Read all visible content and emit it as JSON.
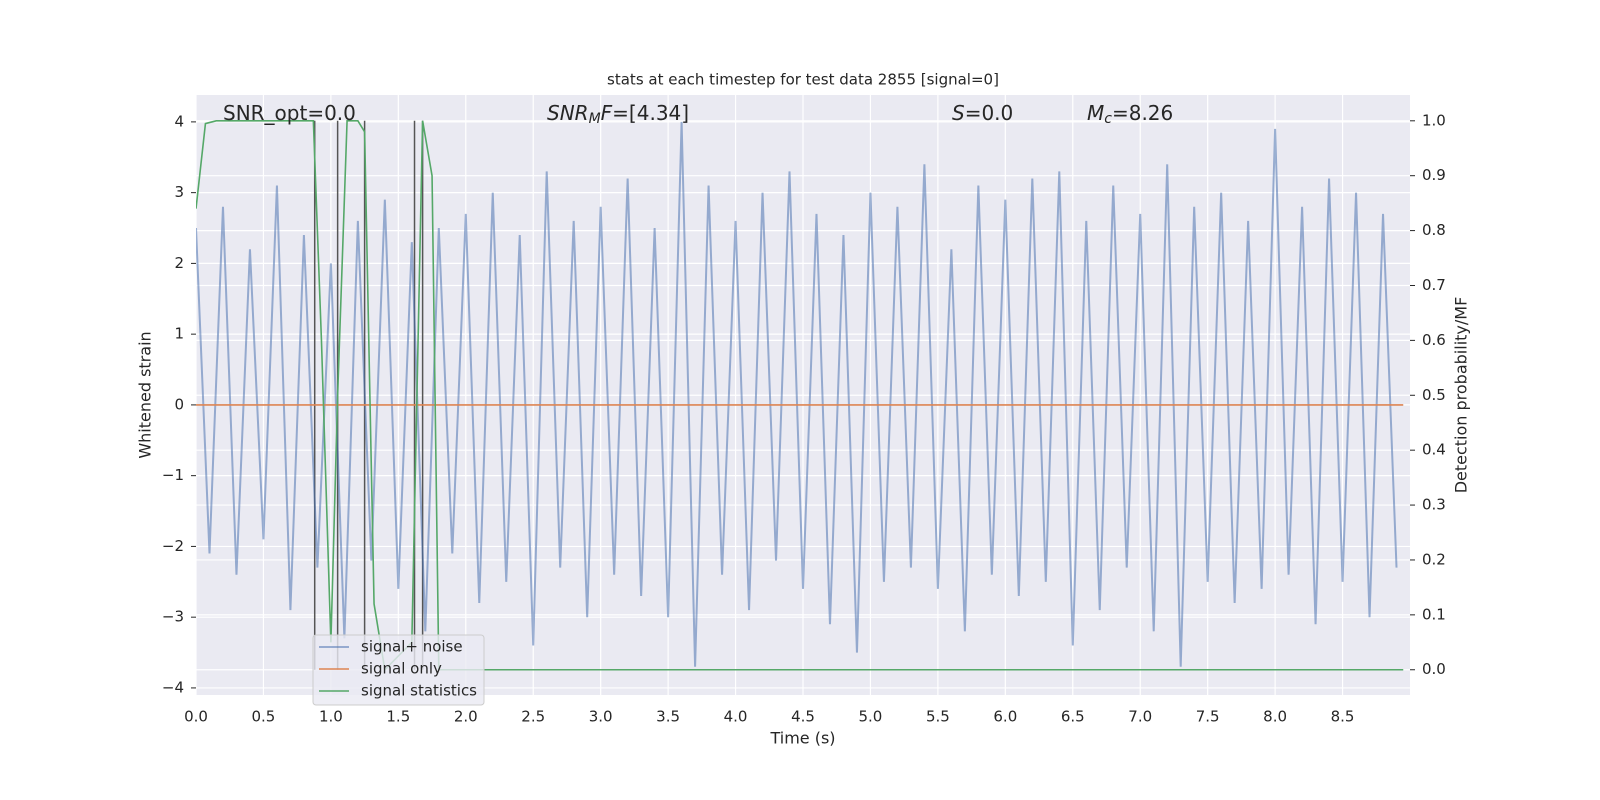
{
  "chart_data": {
    "type": "line",
    "title": "stats at each timestep for test data 2855 [signal=0]",
    "xlabel": "Time (s)",
    "ylabel": "Whitened strain",
    "y2label": "Detection probability/MF",
    "xlim": [
      0,
      9.0
    ],
    "ylim": [
      -4.1,
      4.38
    ],
    "y2lim": [
      -0.046,
      1.047
    ],
    "xticks": [
      {
        "value": 0,
        "label": "0.0"
      },
      {
        "value": 0.5,
        "label": "0.5"
      },
      {
        "value": 1,
        "label": "1.0"
      },
      {
        "value": 1.5,
        "label": "1.5"
      },
      {
        "value": 2,
        "label": "2.0"
      },
      {
        "value": 2.5,
        "label": "2.5"
      },
      {
        "value": 3,
        "label": "3.0"
      },
      {
        "value": 3.5,
        "label": "3.5"
      },
      {
        "value": 4,
        "label": "4.0"
      },
      {
        "value": 4.5,
        "label": "4.5"
      },
      {
        "value": 5,
        "label": "5.0"
      },
      {
        "value": 5.5,
        "label": "5.5"
      },
      {
        "value": 6,
        "label": "6.0"
      },
      {
        "value": 6.5,
        "label": "6.5"
      },
      {
        "value": 7,
        "label": "7.0"
      },
      {
        "value": 7.5,
        "label": "7.5"
      },
      {
        "value": 8,
        "label": "8.0"
      },
      {
        "value": 8.5,
        "label": "8.5"
      }
    ],
    "yticks": [
      {
        "value": -4,
        "label": "−4"
      },
      {
        "value": -3,
        "label": "−3"
      },
      {
        "value": -2,
        "label": "−2"
      },
      {
        "value": -1,
        "label": "−1"
      },
      0,
      1,
      2,
      3,
      4
    ],
    "y2ticks": [
      {
        "value": 0,
        "label": "0.0"
      },
      {
        "value": 0.1,
        "label": "0.1"
      },
      {
        "value": 0.2,
        "label": "0.2"
      },
      {
        "value": 0.3,
        "label": "0.3"
      },
      {
        "value": 0.4,
        "label": "0.4"
      },
      {
        "value": 0.5,
        "label": "0.5"
      },
      {
        "value": 0.6,
        "label": "0.6"
      },
      {
        "value": 0.7,
        "label": "0.7"
      },
      {
        "value": 0.8,
        "label": "0.8"
      },
      {
        "value": 0.9,
        "label": "0.9"
      },
      {
        "value": 1,
        "label": "1.0"
      }
    ],
    "grid": true,
    "legend": "lower left",
    "series": [
      {
        "name": "signal+ noise",
        "color": "#4c72b0",
        "x": [
          0,
          0.1,
          0.2,
          0.3,
          0.4,
          0.5,
          0.6,
          0.7,
          0.8,
          0.9,
          1,
          1.1,
          1.2,
          1.3,
          1.4,
          1.5,
          1.6,
          1.7,
          1.8,
          1.9,
          2,
          2.1,
          2.2,
          2.3,
          2.4,
          2.5,
          2.6,
          2.7,
          2.8,
          2.9,
          3,
          3.1,
          3.2,
          3.3,
          3.4,
          3.5,
          3.6,
          3.7,
          3.8,
          3.9,
          4,
          4.1,
          4.2,
          4.3,
          4.4,
          4.5,
          4.6,
          4.7,
          4.8,
          4.9,
          5,
          5.1,
          5.2,
          5.3,
          5.4,
          5.5,
          5.6,
          5.7,
          5.8,
          5.9,
          6,
          6.1,
          6.2,
          6.3,
          6.4,
          6.5,
          6.6,
          6.7,
          6.8,
          6.9,
          7,
          7.1,
          7.2,
          7.3,
          7.4,
          7.5,
          7.6,
          7.7,
          7.8,
          7.9,
          8,
          8.1,
          8.2,
          8.3,
          8.4,
          8.5,
          8.6,
          8.7,
          8.8,
          8.9
        ],
        "values": [
          2.5,
          -2.1,
          2.8,
          -2.4,
          2.2,
          -1.9,
          3.1,
          -2.9,
          2.4,
          -2.3,
          2.0,
          -3.3,
          2.6,
          -2.2,
          2.9,
          -2.6,
          2.3,
          -3.2,
          2.5,
          -2.1,
          2.7,
          -2.8,
          3.0,
          -2.5,
          2.4,
          -3.4,
          3.3,
          -2.3,
          2.6,
          -3.0,
          2.8,
          -2.4,
          3.2,
          -2.7,
          2.5,
          -3.0,
          4.0,
          -3.7,
          3.1,
          -2.4,
          2.6,
          -2.9,
          3.0,
          -2.2,
          3.3,
          -2.6,
          2.7,
          -3.1,
          2.4,
          -3.5,
          3.0,
          -2.5,
          2.8,
          -2.3,
          3.4,
          -2.6,
          2.2,
          -3.2,
          3.1,
          -2.4,
          2.9,
          -2.7,
          3.2,
          -2.5,
          3.3,
          -3.4,
          2.6,
          -2.9,
          3.1,
          -2.3,
          2.7,
          -3.2,
          3.4,
          -3.7,
          2.8,
          -2.5,
          3.0,
          -2.8,
          2.6,
          -2.6,
          3.9,
          -2.4,
          2.8,
          -3.1,
          3.2,
          -2.5,
          3.0,
          -3.0,
          2.7,
          -2.3
        ]
      },
      {
        "name": "signal only",
        "color": "#dd8452",
        "x": [
          0,
          8.95
        ],
        "values": [
          0,
          0
        ]
      },
      {
        "name": "signal statistics",
        "color": "#55a868",
        "axis": "y2",
        "x": [
          0,
          0.07,
          0.15,
          0.5,
          0.87,
          0.93,
          1.0,
          1.05,
          1.12,
          1.2,
          1.25,
          1.32,
          1.4,
          1.6,
          1.68,
          1.75,
          1.8,
          3.8,
          8.95
        ],
        "values": [
          0.84,
          0.995,
          1.0,
          1.0,
          1.0,
          0.6,
          0.05,
          0.5,
          1.0,
          1.0,
          0.98,
          0.12,
          0.0,
          0.05,
          1.0,
          0.9,
          0.0,
          0.0,
          0.0
        ]
      }
    ],
    "vlines": [
      0.88,
      1.05,
      1.25,
      1.62,
      1.68
    ],
    "vline_color": "#555555",
    "annotations": [
      {
        "parts": [
          {
            "text": "SNR_opt=0.0"
          }
        ]
      },
      {
        "parts": [
          {
            "text": "SNR",
            "italic": true
          },
          {
            "text": "M",
            "italic": true,
            "sub": true
          },
          {
            "text": "F",
            "italic": true
          },
          {
            "text": "=[4.34]"
          }
        ]
      },
      {
        "parts": [
          {
            "text": "S",
            "italic": true
          },
          {
            "text": "=0.0"
          }
        ]
      },
      {
        "parts": [
          {
            "text": "M",
            "italic": true
          },
          {
            "text": "c",
            "italic": true,
            "sub": true
          },
          {
            "text": "=8.26"
          }
        ]
      }
    ]
  }
}
